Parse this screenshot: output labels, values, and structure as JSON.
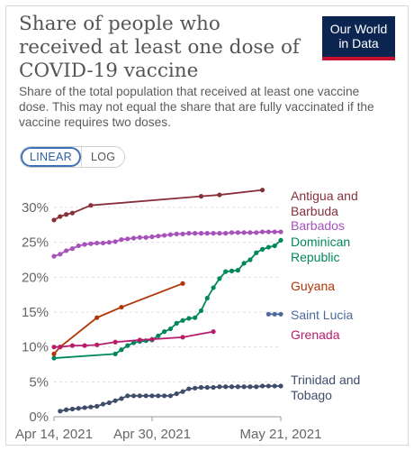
{
  "header": {
    "title": "Share of people who received at least one dose of COVID-19 vaccine",
    "subtitle": "Share of the total population that received at least one vaccine dose. This may not equal the share that are fully vaccinated if the vaccine requires two doses.",
    "logo_line1": "Our World",
    "logo_line2": "in Data"
  },
  "controls": {
    "linear_label": "LINEAR",
    "log_label": "LOG",
    "active": "LINEAR"
  },
  "colors": {
    "logo_bg": "#0b2550",
    "logo_accent": "#c8102e"
  },
  "chart_data": {
    "type": "line",
    "x_ticks": [
      {
        "label": "Apr 14, 2021",
        "day": 0
      },
      {
        "label": "Apr 30, 2021",
        "day": 16
      },
      {
        "label": "May 21, 2021",
        "day": 37
      }
    ],
    "x_axis": "date",
    "xlim": [
      "Apr 14, 2021",
      "May 21, 2021"
    ],
    "ylim": [
      0,
      32
    ],
    "y_ticks": [
      "0%",
      "5%",
      "10%",
      "15%",
      "20%",
      "25%",
      "30%"
    ],
    "y_tick_values": [
      0,
      5,
      10,
      15,
      20,
      25,
      30
    ],
    "grid": "horizontal dashed",
    "legend": "right, inline labels",
    "series": [
      {
        "name": "Antigua and Barbuda",
        "color": "#883039",
        "markers": true,
        "x": [
          "Apr 14, 2021",
          "Apr 15, 2021",
          "Apr 16, 2021",
          "Apr 17, 2021",
          "Apr 20, 2021",
          "May 8, 2021",
          "May 11, 2021",
          "May 18, 2021"
        ],
        "y": [
          28.2,
          28.7,
          29.0,
          29.2,
          30.3,
          31.6,
          31.8,
          32.5
        ]
      },
      {
        "name": "Barbados",
        "color": "#a652ba",
        "markers": true,
        "x": [
          "Apr 14, 2021",
          "Apr 15, 2021",
          "Apr 16, 2021",
          "Apr 17, 2021",
          "Apr 18, 2021",
          "Apr 19, 2021",
          "Apr 20, 2021",
          "Apr 21, 2021",
          "Apr 22, 2021",
          "Apr 23, 2021",
          "Apr 24, 2021",
          "Apr 25, 2021",
          "Apr 26, 2021",
          "Apr 27, 2021",
          "Apr 28, 2021",
          "Apr 29, 2021",
          "Apr 30, 2021",
          "May 1, 2021",
          "May 2, 2021",
          "May 3, 2021",
          "May 4, 2021",
          "May 5, 2021",
          "May 6, 2021",
          "May 7, 2021",
          "May 8, 2021",
          "May 9, 2021",
          "May 10, 2021",
          "May 11, 2021",
          "May 12, 2021",
          "May 13, 2021",
          "May 14, 2021",
          "May 15, 2021",
          "May 16, 2021",
          "May 17, 2021",
          "May 18, 2021",
          "May 19, 2021",
          "May 20, 2021",
          "May 21, 2021"
        ],
        "y": [
          23.0,
          23.3,
          23.8,
          24.1,
          24.5,
          24.7,
          24.8,
          24.9,
          24.9,
          25.0,
          25.1,
          25.4,
          25.5,
          25.6,
          25.7,
          25.7,
          25.8,
          25.9,
          26.0,
          26.1,
          26.2,
          26.2,
          26.3,
          26.3,
          26.3,
          26.3,
          26.3,
          26.3,
          26.3,
          26.4,
          26.4,
          26.4,
          26.4,
          26.4,
          26.5,
          26.5,
          26.5,
          26.5
        ]
      },
      {
        "name": "Dominican Republic",
        "color": "#00875e",
        "markers": true,
        "x": [
          "Apr 14, 2021",
          "Apr 24, 2021",
          "Apr 25, 2021",
          "Apr 26, 2021",
          "Apr 27, 2021",
          "Apr 28, 2021",
          "Apr 29, 2021",
          "Apr 30, 2021",
          "May 1, 2021",
          "May 2, 2021",
          "May 3, 2021",
          "May 4, 2021",
          "May 5, 2021",
          "May 6, 2021",
          "May 7, 2021",
          "May 8, 2021",
          "May 9, 2021",
          "May 10, 2021",
          "May 11, 2021",
          "May 12, 2021",
          "May 13, 2021",
          "May 14, 2021",
          "May 15, 2021",
          "May 16, 2021",
          "May 17, 2021",
          "May 18, 2021",
          "May 19, 2021",
          "May 20, 2021",
          "May 21, 2021"
        ],
        "y": [
          8.4,
          9.0,
          9.6,
          10.2,
          10.6,
          10.8,
          10.9,
          11.0,
          11.6,
          12.2,
          12.6,
          13.4,
          13.8,
          14.1,
          14.2,
          15.2,
          17.0,
          18.5,
          19.8,
          20.8,
          20.9,
          21.0,
          22.0,
          22.5,
          23.5,
          24.0,
          24.3,
          24.5,
          25.3
        ]
      },
      {
        "name": "Guyana",
        "color": "#b13507",
        "markers": true,
        "x": [
          "Apr 14, 2021",
          "Apr 15, 2021",
          "Apr 21, 2021",
          "Apr 25, 2021",
          "May 5, 2021"
        ],
        "y": [
          9.0,
          10.0,
          14.2,
          15.7,
          19.1
        ]
      },
      {
        "name": "Saint Lucia",
        "color": "#4c6a9c",
        "markers": true,
        "x": [
          "May 19, 2021",
          "May 20, 2021",
          "May 21, 2021"
        ],
        "y": [
          14.7,
          14.7,
          14.7
        ]
      },
      {
        "name": "Grenada",
        "color": "#b81d6d",
        "markers": true,
        "x": [
          "Apr 14, 2021",
          "Apr 15, 2021",
          "Apr 17, 2021",
          "Apr 19, 2021",
          "Apr 21, 2021",
          "Apr 24, 2021",
          "Apr 28, 2021",
          "Apr 30, 2021",
          "May 5, 2021",
          "May 10, 2021"
        ],
        "y": [
          10.0,
          10.0,
          10.2,
          10.2,
          10.3,
          10.7,
          11.0,
          11.1,
          11.4,
          12.2
        ]
      },
      {
        "name": "Trinidad and Tobago",
        "color": "#3f4d6b",
        "markers": true,
        "x": [
          "Apr 15, 2021",
          "Apr 16, 2021",
          "Apr 17, 2021",
          "Apr 18, 2021",
          "Apr 19, 2021",
          "Apr 20, 2021",
          "Apr 21, 2021",
          "Apr 22, 2021",
          "Apr 23, 2021",
          "Apr 24, 2021",
          "Apr 25, 2021",
          "Apr 26, 2021",
          "Apr 27, 2021",
          "Apr 28, 2021",
          "Apr 29, 2021",
          "Apr 30, 2021",
          "May 1, 2021",
          "May 2, 2021",
          "May 3, 2021",
          "May 4, 2021",
          "May 5, 2021",
          "May 6, 2021",
          "May 7, 2021",
          "May 8, 2021",
          "May 9, 2021",
          "May 10, 2021",
          "May 11, 2021",
          "May 12, 2021",
          "May 13, 2021",
          "May 14, 2021",
          "May 15, 2021",
          "May 16, 2021",
          "May 17, 2021",
          "May 18, 2021",
          "May 19, 2021",
          "May 20, 2021",
          "May 21, 2021"
        ],
        "y": [
          0.8,
          1.0,
          1.1,
          1.2,
          1.3,
          1.4,
          1.5,
          1.8,
          2.0,
          2.3,
          2.6,
          3.0,
          3.0,
          3.0,
          3.0,
          3.0,
          3.0,
          3.0,
          3.0,
          3.3,
          3.6,
          4.0,
          4.1,
          4.2,
          4.2,
          4.2,
          4.3,
          4.3,
          4.3,
          4.3,
          4.3,
          4.3,
          4.3,
          4.4,
          4.4,
          4.4,
          4.4
        ]
      }
    ],
    "labels": [
      {
        "series": "Antigua and Barbuda",
        "lines": [
          "Antigua and",
          "Barbuda"
        ]
      },
      {
        "series": "Barbados",
        "lines": [
          "Barbados"
        ]
      },
      {
        "series": "Dominican Republic",
        "lines": [
          "Dominican",
          "Republic"
        ]
      },
      {
        "series": "Guyana",
        "lines": [
          "Guyana"
        ]
      },
      {
        "series": "Saint Lucia",
        "lines": [
          "Saint Lucia"
        ]
      },
      {
        "series": "Grenada",
        "lines": [
          "Grenada"
        ]
      },
      {
        "series": "Trinidad and Tobago",
        "lines": [
          "Trinidad and",
          "Tobago"
        ]
      }
    ]
  }
}
